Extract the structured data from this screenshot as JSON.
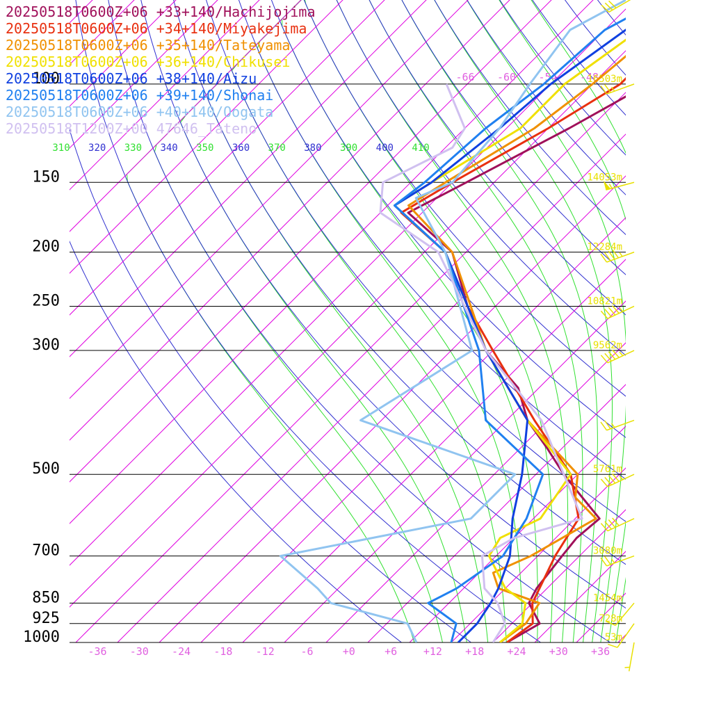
{
  "legend": [
    {
      "label": "20250518T0600Z+06 +33+140/Hachijojima",
      "color": "#a0105a"
    },
    {
      "label": "20250518T0600Z+06 +34+140/Miyakejima",
      "color": "#e83010"
    },
    {
      "label": "20250518T0600Z+06 +35+140/Tateyama",
      "color": "#f09000"
    },
    {
      "label": "20250518T0600Z+06 +36+140/Chikusei",
      "color": "#f0e000"
    },
    {
      "label": "20250518T0600Z+06 +38+140/Aizu",
      "color": "#1040e0"
    },
    {
      "label": "20250518T0600Z+06 +39+140/Shonai",
      "color": "#2080f0"
    },
    {
      "label": "20250518T0600Z+06 +40+140/Oogata",
      "color": "#90c4f0"
    },
    {
      "label": "20250518T1200Z+00 47646_Tateno",
      "color": "#d0c0f0"
    }
  ],
  "colors": {
    "isobar": "#000000",
    "isotherm": "#e000e0",
    "dry_adiabat": "#3030d0",
    "moist_adiabat": "#30e030",
    "height_label": "#e8e000",
    "wind_barb": "#e8e000",
    "temp_tick": "#e060e0"
  },
  "chart_data": {
    "type": "skew-t log-p",
    "pressure_levels": [
      {
        "p": 100,
        "label": "100",
        "height": "16503m"
      },
      {
        "p": 150,
        "label": "150",
        "height": "14053m"
      },
      {
        "p": 200,
        "label": "200",
        "height": "12284m"
      },
      {
        "p": 250,
        "label": "250",
        "height": "10821m"
      },
      {
        "p": 300,
        "label": "300",
        "height": "9562m"
      },
      {
        "p": 500,
        "label": "500",
        "height": "5761m"
      },
      {
        "p": 700,
        "label": "700",
        "height": "3080m"
      },
      {
        "p": 850,
        "label": "850",
        "height": "1454m"
      },
      {
        "p": 925,
        "label": "925",
        "height": "728m"
      },
      {
        "p": 1000,
        "label": "1000",
        "height": "53m"
      }
    ],
    "temperature_ticks": [
      "-36",
      "-30",
      "-24",
      "-18",
      "-12",
      "-6",
      "+0",
      "+6",
      "+12",
      "+18",
      "+24",
      "+30",
      "+36"
    ],
    "top_isotherm_labels": [
      "-66",
      "-60",
      "-54",
      "-48"
    ],
    "theta_labels": [
      "310",
      "320",
      "330",
      "340",
      "350",
      "360",
      "370",
      "380",
      "390",
      "400",
      "410"
    ],
    "isotherm_range": [
      -130,
      40
    ],
    "theta_range": [
      280,
      470
    ],
    "theta_e_range": [
      300,
      440
    ],
    "series": [
      {
        "name": "20250518T0600Z+06 +33+140/Hachijojima",
        "color": "#a0105a",
        "points": [
          [
            1000,
            22
          ],
          [
            925,
            24
          ],
          [
            850,
            19.5
          ],
          [
            800,
            18.5
          ],
          [
            700,
            17.5
          ],
          [
            650,
            17
          ],
          [
            600,
            17.5
          ],
          [
            550,
            12
          ],
          [
            500,
            6
          ],
          [
            450,
            0
          ],
          [
            400,
            -7
          ],
          [
            350,
            -13
          ],
          [
            300,
            -23
          ],
          [
            250,
            -32
          ],
          [
            200,
            -42
          ],
          [
            170,
            -54
          ],
          [
            150,
            -50
          ],
          [
            120,
            -43
          ],
          [
            100,
            -38
          ],
          [
            75,
            -40
          ],
          [
            50,
            -35
          ]
        ]
      },
      {
        "name": "20250518T0600Z+06 +34+140/Miyakejima",
        "color": "#e83010",
        "points": [
          [
            1000,
            22
          ],
          [
            925,
            23
          ],
          [
            850,
            20
          ],
          [
            700,
            16.5
          ],
          [
            600,
            14.5
          ],
          [
            500,
            7
          ],
          [
            400,
            -6
          ],
          [
            300,
            -22
          ],
          [
            250,
            -32
          ],
          [
            200,
            -43
          ],
          [
            170,
            -55
          ],
          [
            150,
            -52
          ],
          [
            120,
            -46
          ],
          [
            100,
            -42
          ],
          [
            75,
            -42
          ],
          [
            50,
            -34
          ]
        ]
      },
      {
        "name": "20250518T0600Z+06 +35+140/Tateyama",
        "color": "#f09000",
        "points": [
          [
            1000,
            21
          ],
          [
            925,
            22
          ],
          [
            850,
            21
          ],
          [
            800,
            13
          ],
          [
            750,
            10
          ],
          [
            700,
            13
          ],
          [
            600,
            17
          ],
          [
            550,
            11
          ],
          [
            500,
            8
          ],
          [
            400,
            -7
          ],
          [
            300,
            -23
          ],
          [
            200,
            -42
          ],
          [
            165,
            -55
          ],
          [
            150,
            -53
          ],
          [
            120,
            -48
          ],
          [
            100,
            -46
          ],
          [
            75,
            -44
          ],
          [
            50,
            -35
          ]
        ]
      },
      {
        "name": "20250518T0600Z+06 +36+140/Chikusei",
        "color": "#f0e000",
        "points": [
          [
            1000,
            21
          ],
          [
            925,
            21.5
          ],
          [
            850,
            19
          ],
          [
            800,
            14
          ],
          [
            700,
            7
          ],
          [
            650,
            6
          ],
          [
            600,
            9
          ],
          [
            500,
            7
          ],
          [
            400,
            -7
          ],
          [
            300,
            -23
          ],
          [
            200,
            -43
          ],
          [
            165,
            -57
          ],
          [
            150,
            -55
          ],
          [
            120,
            -50
          ],
          [
            100,
            -50
          ],
          [
            80,
            -47
          ],
          [
            70,
            -45
          ],
          [
            50,
            -36
          ]
        ]
      },
      {
        "name": "20250518T0600Z+06 +38+140/Aizu",
        "color": "#1040e0",
        "points": [
          [
            1000,
            15
          ],
          [
            925,
            15
          ],
          [
            850,
            14
          ],
          [
            800,
            13
          ],
          [
            700,
            10
          ],
          [
            600,
            5
          ],
          [
            500,
            0
          ],
          [
            400,
            -7
          ],
          [
            300,
            -23
          ],
          [
            200,
            -43
          ],
          [
            165,
            -57
          ],
          [
            150,
            -55
          ],
          [
            120,
            -53
          ],
          [
            100,
            -52
          ],
          [
            80,
            -49
          ],
          [
            70,
            -46
          ],
          [
            50,
            -36
          ]
        ]
      },
      {
        "name": "20250518T0600Z+06 +39+140/Shonai",
        "color": "#2080f0",
        "points": [
          [
            1000,
            14
          ],
          [
            925,
            12
          ],
          [
            850,
            5
          ],
          [
            800,
            7
          ],
          [
            700,
            9
          ],
          [
            600,
            7
          ],
          [
            500,
            3
          ],
          [
            400,
            -13
          ],
          [
            300,
            -24
          ],
          [
            200,
            -43
          ],
          [
            165,
            -57
          ],
          [
            150,
            -56
          ],
          [
            120,
            -55
          ],
          [
            100,
            -53
          ],
          [
            80,
            -52
          ],
          [
            70,
            -48
          ],
          [
            50,
            -37
          ]
        ]
      },
      {
        "name": "20250518T0600Z+06 +40+140/Oogata",
        "color": "#90c4f0",
        "points": [
          [
            1000,
            9
          ],
          [
            925,
            5
          ],
          [
            850,
            -9
          ],
          [
            800,
            -13
          ],
          [
            700,
            -23
          ],
          [
            600,
            -1
          ],
          [
            500,
            -1
          ],
          [
            400,
            -31
          ],
          [
            300,
            -25
          ],
          [
            200,
            -43
          ],
          [
            160,
            -55
          ],
          [
            150,
            -52
          ],
          [
            120,
            -53
          ],
          [
            100,
            -55
          ],
          [
            80,
            -57
          ],
          [
            70,
            -53
          ],
          [
            50,
            -38
          ]
        ]
      },
      {
        "name": "20250518T1200Z+00 47646_Tateno",
        "color": "#d0c0f0",
        "points": [
          [
            1000,
            20
          ],
          [
            925,
            19
          ],
          [
            850,
            15
          ],
          [
            800,
            11
          ],
          [
            700,
            6
          ],
          [
            650,
            8
          ],
          [
            600,
            15
          ],
          [
            500,
            6
          ],
          [
            400,
            -5
          ],
          [
            300,
            -23
          ],
          [
            200,
            -44
          ],
          [
            170,
            -58
          ],
          [
            150,
            -62
          ],
          [
            130,
            -57
          ],
          [
            120,
            -58
          ],
          [
            100,
            -67
          ]
        ]
      }
    ],
    "wind_barbs": [
      {
        "p": 50,
        "dir": 240,
        "speed": 25
      },
      {
        "p": 70,
        "dir": 240,
        "speed": 30
      },
      {
        "p": 100,
        "dir": 250,
        "speed": 25
      },
      {
        "p": 150,
        "dir": 255,
        "speed": 55
      },
      {
        "p": 200,
        "dir": 250,
        "speed": 45
      },
      {
        "p": 250,
        "dir": 245,
        "speed": 45
      },
      {
        "p": 300,
        "dir": 245,
        "speed": 45
      },
      {
        "p": 400,
        "dir": 250,
        "speed": 25
      },
      {
        "p": 500,
        "dir": 245,
        "speed": 45
      },
      {
        "p": 600,
        "dir": 245,
        "speed": 40
      },
      {
        "p": 700,
        "dir": 250,
        "speed": 25
      },
      {
        "p": 850,
        "dir": 220,
        "speed": 10
      },
      {
        "p": 925,
        "dir": 215,
        "speed": 10
      },
      {
        "p": 1000,
        "dir": 190,
        "speed": 5
      }
    ]
  }
}
